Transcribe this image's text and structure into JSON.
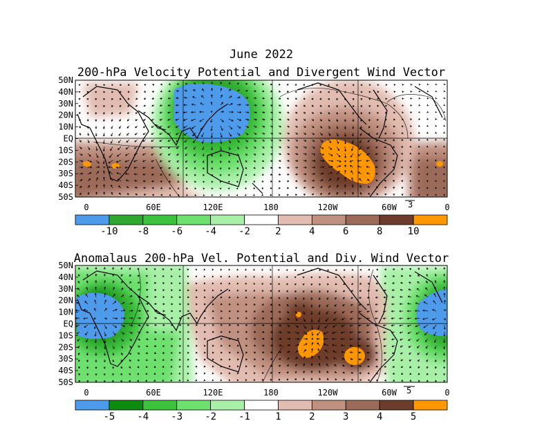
{
  "figure": {
    "title": "June 2022"
  },
  "panels": [
    {
      "title": "200-hPa Velocity Potential and Divergent Wind Vector",
      "lat_labels": [
        "50N",
        "40N",
        "30N",
        "20N",
        "10N",
        "EQ",
        "10S",
        "20S",
        "30S",
        "40S",
        "50S"
      ],
      "lon_labels": [
        "0",
        "60E",
        "120E",
        "180",
        "120W",
        "60W",
        "0"
      ],
      "vector_scale": "3",
      "colorbar": {
        "labels": [
          "-10",
          "-8",
          "-6",
          "-4",
          "-2",
          "2",
          "4",
          "6",
          "8",
          "10"
        ],
        "colors": [
          "#4d9bea",
          "#2ea82e",
          "#3cc23c",
          "#6ee06e",
          "#a8f0a8",
          "#ffffff",
          "#e2bcb0",
          "#c09080",
          "#9c6a58",
          "#6e3c2c",
          "#ff9800"
        ]
      }
    },
    {
      "title": "Anomalaus 200-hPa Vel. Potential and Div. Wind Vector",
      "lat_labels": [
        "50N",
        "40N",
        "30N",
        "20N",
        "10N",
        "EQ",
        "10S",
        "20S",
        "30S",
        "40S",
        "50S"
      ],
      "lon_labels": [
        "0",
        "60E",
        "120E",
        "180",
        "120W",
        "60W",
        "0"
      ],
      "vector_scale": "5",
      "colorbar": {
        "labels": [
          "-5",
          "-4",
          "-3",
          "-2",
          "-1",
          "1",
          "2",
          "3",
          "4",
          "5"
        ],
        "colors": [
          "#4d9bea",
          "#0e8a0e",
          "#3cc23c",
          "#6ee06e",
          "#a8f0a8",
          "#ffffff",
          "#e2bcb0",
          "#c09080",
          "#9c6a58",
          "#6e3c2c",
          "#ff9800"
        ]
      }
    }
  ]
}
